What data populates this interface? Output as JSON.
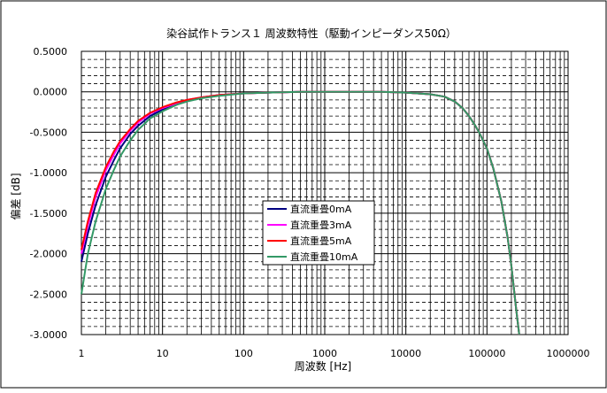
{
  "chart_data": {
    "type": "line",
    "title": "染谷試作トランス１ 周波数特性（駆動インピーダンス50Ω）",
    "xlabel": "周波数 [Hz]",
    "ylabel": "偏差 [dB]",
    "xscale": "log",
    "xlim": [
      1,
      1000000
    ],
    "ylim": [
      -3.0,
      0.5
    ],
    "x_ticks": [
      "1",
      "10",
      "100",
      "1000",
      "10000",
      "100000",
      "1000000"
    ],
    "y_ticks": [
      "0.5000",
      "0.0000",
      "-0.5000",
      "-1.0000",
      "-1.5000",
      "-2.0000",
      "-2.5000",
      "-3.0000"
    ],
    "grid": true,
    "legend_position": "center",
    "series": [
      {
        "name": "直流重畳0mA",
        "color": "#000080",
        "x": [
          1,
          1.2,
          1.5,
          2,
          2.5,
          3,
          4,
          5,
          7,
          10,
          15,
          20,
          30,
          50,
          100,
          200,
          500,
          1000,
          2000,
          5000,
          10000,
          20000,
          30000,
          40000,
          50000,
          60000,
          70000,
          80000,
          100000,
          120000,
          150000,
          180000,
          200000,
          230000,
          250000
        ],
        "values": [
          -2.1,
          -1.75,
          -1.4,
          -1.05,
          -0.85,
          -0.7,
          -0.52,
          -0.42,
          -0.3,
          -0.22,
          -0.15,
          -0.11,
          -0.07,
          -0.04,
          -0.02,
          -0.01,
          0.0,
          0.0,
          0.0,
          0.0,
          -0.01,
          -0.03,
          -0.06,
          -0.12,
          -0.2,
          -0.3,
          -0.4,
          -0.5,
          -0.7,
          -0.95,
          -1.35,
          -1.8,
          -2.15,
          -2.7,
          -3.0
        ]
      },
      {
        "name": "直流重畳3mA",
        "color": "#ff00ff",
        "x": [
          1,
          1.2,
          1.5,
          2,
          2.5,
          3,
          4,
          5,
          7,
          10,
          15,
          20,
          30,
          50,
          100,
          200,
          500,
          1000,
          2000,
          5000,
          10000,
          20000,
          30000,
          40000,
          50000,
          60000,
          70000,
          80000,
          100000,
          120000,
          150000,
          180000,
          200000,
          230000,
          250000
        ],
        "values": [
          -2.0,
          -1.65,
          -1.3,
          -0.97,
          -0.78,
          -0.64,
          -0.48,
          -0.38,
          -0.27,
          -0.2,
          -0.14,
          -0.1,
          -0.07,
          -0.04,
          -0.02,
          -0.01,
          0.0,
          0.0,
          0.0,
          0.0,
          -0.01,
          -0.03,
          -0.06,
          -0.12,
          -0.2,
          -0.3,
          -0.4,
          -0.5,
          -0.7,
          -0.95,
          -1.35,
          -1.8,
          -2.15,
          -2.7,
          -3.0
        ]
      },
      {
        "name": "直流重畳5mA",
        "color": "#ff0000",
        "x": [
          1,
          1.2,
          1.5,
          2,
          2.5,
          3,
          4,
          5,
          7,
          10,
          15,
          20,
          30,
          50,
          100,
          200,
          500,
          1000,
          2000,
          5000,
          10000,
          20000,
          30000,
          40000,
          50000,
          60000,
          70000,
          80000,
          100000,
          120000,
          150000,
          180000,
          200000,
          230000,
          250000
        ],
        "values": [
          -1.95,
          -1.6,
          -1.25,
          -0.93,
          -0.74,
          -0.61,
          -0.46,
          -0.36,
          -0.26,
          -0.19,
          -0.13,
          -0.1,
          -0.07,
          -0.04,
          -0.02,
          -0.01,
          0.0,
          0.0,
          0.0,
          0.0,
          -0.01,
          -0.03,
          -0.06,
          -0.12,
          -0.2,
          -0.3,
          -0.4,
          -0.5,
          -0.7,
          -0.95,
          -1.35,
          -1.8,
          -2.15,
          -2.7,
          -3.0
        ]
      },
      {
        "name": "直流重畳10mA",
        "color": "#339966",
        "x": [
          1,
          1.2,
          1.5,
          2,
          2.5,
          3,
          4,
          5,
          7,
          10,
          15,
          20,
          30,
          50,
          100,
          200,
          500,
          1000,
          2000,
          5000,
          10000,
          20000,
          30000,
          40000,
          50000,
          60000,
          70000,
          80000,
          100000,
          120000,
          150000,
          180000,
          200000,
          230000,
          250000
        ],
        "values": [
          -2.5,
          -2.0,
          -1.6,
          -1.2,
          -0.97,
          -0.8,
          -0.6,
          -0.47,
          -0.33,
          -0.24,
          -0.16,
          -0.12,
          -0.08,
          -0.05,
          -0.02,
          -0.01,
          0.0,
          0.0,
          0.0,
          0.0,
          -0.01,
          -0.03,
          -0.06,
          -0.12,
          -0.2,
          -0.3,
          -0.4,
          -0.5,
          -0.7,
          -0.95,
          -1.35,
          -1.8,
          -2.15,
          -2.7,
          -3.0
        ]
      }
    ]
  }
}
